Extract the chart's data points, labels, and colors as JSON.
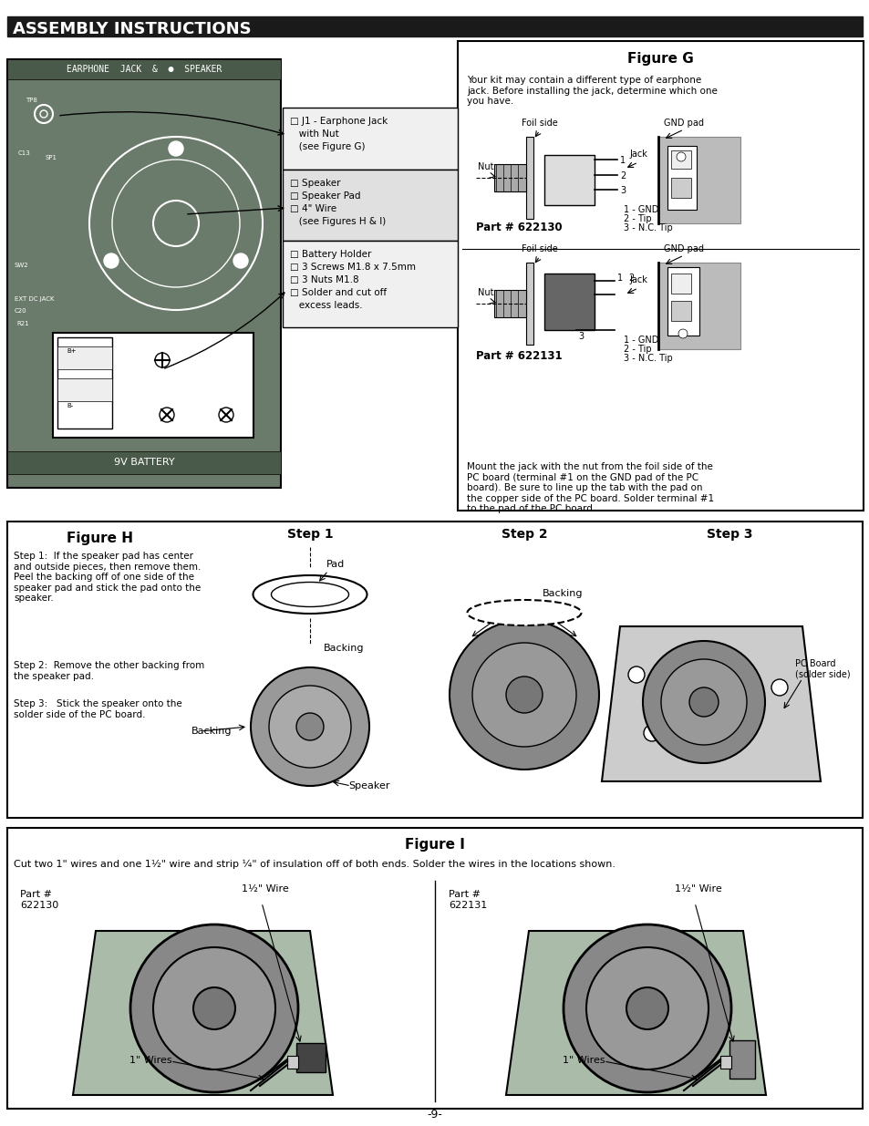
{
  "page_bg": "#ffffff",
  "header_bg": "#1a1a1a",
  "header_text": "ASSEMBLY INSTRUCTIONS",
  "header_text_color": "#ffffff",
  "figure_g_title": "Figure G",
  "figure_g_desc": "Your kit may contain a different type of earphone\njack. Before installing the jack, determine which one\nyou have.",
  "figure_g_part1": "Part # 622130",
  "figure_g_part2": "Part # 622131",
  "figure_g_footer": "Mount the jack with the nut from the foil side of the\nPC board (terminal #1 on the GND pad of the PC\nboard). Be sure to line up the tab with the pad on\nthe copper side of the PC board. Solder terminal #1\nto the pad of the PC board.",
  "checklist_items": [
    [
      "J1 - Earphone Jack",
      "with Nut",
      "(see Figure G)"
    ],
    [
      "Speaker",
      "Speaker Pad",
      "4\" Wire",
      "(see Figures H & I)"
    ],
    [
      "Battery Holder",
      "3 Screws M1.8 x 7.5mm",
      "3 Nuts M1.8",
      "Solder and cut off",
      "excess leads."
    ]
  ],
  "figure_h_title": "Figure H",
  "figure_h_step1": "Step 1:  If the speaker pad has center\nand outside pieces, then remove them.\nPeel the backing off of one side of the\nspeaker pad and stick the pad onto the\nspeaker.",
  "figure_h_step2": "Step 2:  Remove the other backing from\nthe speaker pad.",
  "figure_h_step3": "Step 3:   Stick the speaker onto the\nsolder side of the PC board.",
  "figure_i_title": "Figure I",
  "figure_i_desc": "Cut two 1\" wires and one 1½\" wire and strip ¼\" of insulation off of both ends. Solder the wires in the locations shown.",
  "figure_i_part1": "Part #\n622130",
  "figure_i_part2": "Part #\n622131",
  "figure_i_wire1a": "1½\" Wire",
  "figure_i_wire2a": "1½\" Wire",
  "figure_i_wire1b": "1\" Wires",
  "figure_i_wire2b": "1\" Wires",
  "board_color": "#6b7b6b",
  "board_dark": "#4a5a4a",
  "page_number": "-9-"
}
